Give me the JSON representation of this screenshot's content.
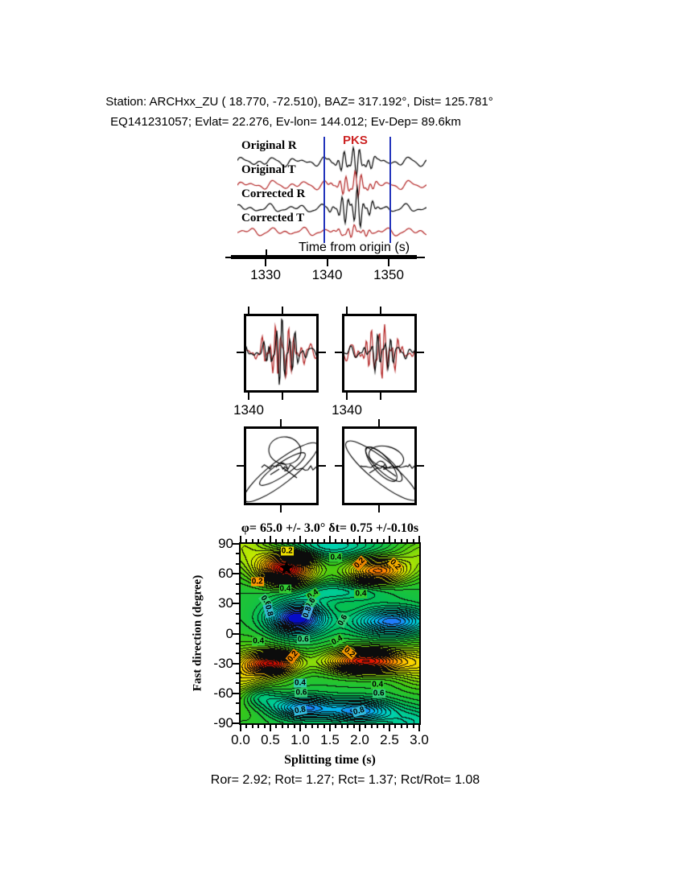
{
  "header": {
    "line1": "Station: ARCHxx_ZU (  18.770,  -72.510), BAZ=  317.192°, Dist=  125.781°",
    "line2": "EQ141231057; Evlat=  22.276, Ev-lon= 144.012; Ev-Dep= 89.6km"
  },
  "waveform_panel": {
    "phase_label": "PKS",
    "phase_label_color": "#cc2222",
    "traces": [
      {
        "label": "Original R",
        "color": "#000000"
      },
      {
        "label": "Original T",
        "color": "#b22222"
      },
      {
        "label": "Corrected R",
        "color": "#000000"
      },
      {
        "label": "Corrected T",
        "color": "#b22222"
      }
    ],
    "axis_label": "Time from origin (s)",
    "ticks": [
      "1330",
      "1340",
      "1350"
    ],
    "tick_values": [
      1330,
      1340,
      1350
    ],
    "window_marker_color": "#2233bb",
    "window_lines_s": [
      1339.5,
      1350.0
    ]
  },
  "seismogram_boxes": {
    "left_tick_label": "1340",
    "right_tick_label": "1340"
  },
  "result_title": "φ= 65.0 +/- 3.0° δt= 0.75 +/-0.10s",
  "contour": {
    "ylabel": "Fast direction (degree)",
    "xlabel": "Splitting time (s)",
    "yticks": [
      "90",
      "60",
      "30",
      "0",
      "-30",
      "-60",
      "-90"
    ],
    "xticks": [
      "0.0",
      "0.5",
      "1.0",
      "1.5",
      "2.0",
      "2.5",
      "3.0"
    ],
    "labels": [
      {
        "text": "0.2",
        "t": 0.78,
        "th": 83,
        "rot": 0,
        "bg": "#eedd00"
      },
      {
        "text": "0.4",
        "t": 1.6,
        "th": 76,
        "rot": 0,
        "bg": "#33cc33"
      },
      {
        "text": "0.2",
        "t": 2.0,
        "th": 71,
        "rot": -45,
        "bg": "#ee8800"
      },
      {
        "text": "0.2",
        "t": 2.6,
        "th": 69,
        "rot": 45,
        "bg": "#eeaa00"
      },
      {
        "text": "0.2",
        "t": 0.28,
        "th": 52,
        "rot": 0,
        "bg": "#ff9900"
      },
      {
        "text": "0.4",
        "t": 0.75,
        "th": 45,
        "rot": 0,
        "bg": "#33cc33"
      },
      {
        "text": "0.4",
        "t": 1.22,
        "th": 39,
        "rot": -35,
        "bg": "#33cc33"
      },
      {
        "text": "0.4",
        "t": 2.02,
        "th": 40,
        "rot": 0,
        "bg": "#33cc33"
      },
      {
        "text": "0.6",
        "t": 0.42,
        "th": 33,
        "rot": 55,
        "bg": "#33cc77"
      },
      {
        "text": "0.8",
        "t": 0.47,
        "th": 23,
        "rot": 75,
        "bg": "#33bbcc"
      },
      {
        "text": "0.6",
        "t": 1.18,
        "th": 30,
        "rot": -55,
        "bg": "#33cc77"
      },
      {
        "text": "0.8",
        "t": 1.12,
        "th": 21,
        "rot": -70,
        "bg": "#44aadd"
      },
      {
        "text": "0.6",
        "t": 1.72,
        "th": 13,
        "rot": -60,
        "bg": "#33cc77"
      },
      {
        "text": "0.4",
        "t": 0.3,
        "th": -8,
        "rot": 0,
        "bg": "#33cc33"
      },
      {
        "text": "0.6",
        "t": 1.05,
        "th": -6,
        "rot": 0,
        "bg": "#33cc77"
      },
      {
        "text": "0.4",
        "t": 1.62,
        "th": -7,
        "rot": -30,
        "bg": "#33cc33"
      },
      {
        "text": "0.2",
        "t": 0.88,
        "th": -23,
        "rot": -50,
        "bg": "#ee8800"
      },
      {
        "text": "0.2",
        "t": 1.82,
        "th": -19,
        "rot": 40,
        "bg": "#ee9900"
      },
      {
        "text": "0.4",
        "t": 1.0,
        "th": -50,
        "rot": 0,
        "bg": "#33ccaa"
      },
      {
        "text": "0.6",
        "t": 1.02,
        "th": -59,
        "rot": 0,
        "bg": "#33cc77"
      },
      {
        "text": "0.4",
        "t": 2.3,
        "th": -51,
        "rot": 0,
        "bg": "#33cc33"
      },
      {
        "text": "0.6",
        "t": 2.32,
        "th": -60,
        "rot": 0,
        "bg": "#33cc77"
      },
      {
        "text": "0.8",
        "t": 1.0,
        "th": -77,
        "rot": -10,
        "bg": "#33bbdd"
      },
      {
        "text": "0.8",
        "t": 1.98,
        "th": -78,
        "rot": -15,
        "bg": "#33bbdd"
      }
    ]
  },
  "footer": {
    "stats": "Ror= 2.92; Rot= 1.27; Rct= 1.37; Rct/Rot= 1.08"
  },
  "chart_data": {
    "type": "heatmap",
    "title": "φ= 65.0 +/- 3.0° δt= 0.75 +/-0.10s",
    "xlabel": "Splitting time (s)",
    "ylabel": "Fast direction (degree)",
    "xlim": [
      0.0,
      3.0
    ],
    "ylim": [
      -90,
      90
    ],
    "xticks": [
      0.0,
      0.5,
      1.0,
      1.5,
      2.0,
      2.5,
      3.0
    ],
    "yticks": [
      90,
      60,
      30,
      0,
      -30,
      -60,
      -90
    ],
    "grid": false,
    "colormap": "red(min) -> orange -> yellow -> green -> cyan -> blue(max), black contour lines",
    "contour_labeled_levels": [
      0.2,
      0.4,
      0.6,
      0.8
    ],
    "best_fit": {
      "fast_direction_deg": 65.0,
      "fast_direction_err_deg": 3.0,
      "split_time_s": 0.75,
      "split_time_err_s": 0.1,
      "marker": "black star",
      "marker_position": [
        0.77,
        65
      ]
    },
    "misfit_minima": [
      [
        0.77,
        65
      ],
      [
        2.3,
        63
      ],
      [
        0.55,
        -30
      ],
      [
        2.1,
        -28
      ]
    ],
    "misfit_maxima": [
      [
        0.95,
        15
      ],
      [
        2.55,
        12
      ],
      [
        1.05,
        -75
      ],
      [
        2.0,
        -78
      ]
    ],
    "waveform_axis": {
      "label": "Time from origin (s)",
      "ticks": [
        1330,
        1340,
        1350
      ],
      "phase": "PKS",
      "analysis_window_s": [
        1339.5,
        1350.0
      ]
    },
    "quality_stats": {
      "Ror": 2.92,
      "Rot": 1.27,
      "Rct": 1.37,
      "Rct_over_Rot": 1.08
    }
  }
}
